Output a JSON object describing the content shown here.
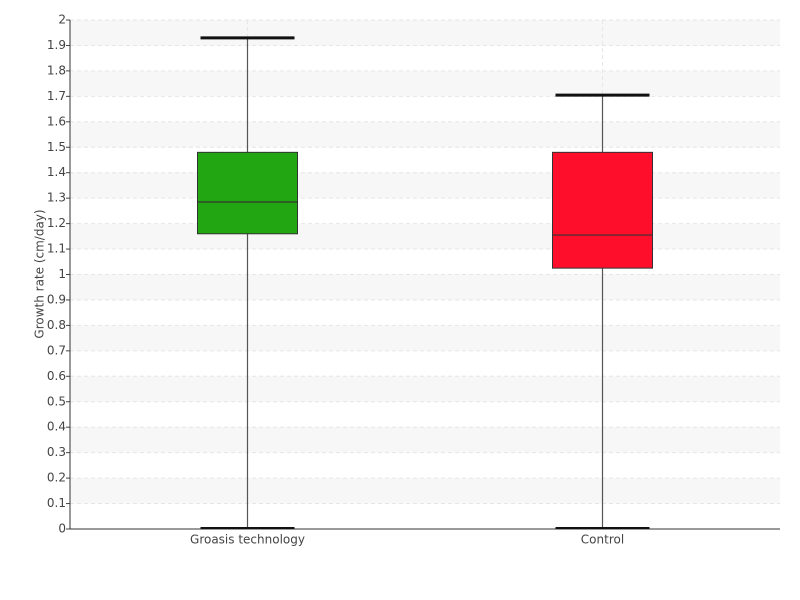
{
  "chart_data": {
    "type": "box",
    "y_label": "Growth rate (cm/day)",
    "categories": [
      "Groasis technology",
      "Control"
    ],
    "boxes": [
      {
        "min": 0,
        "q1": 1.16,
        "median": 1.285,
        "q3": 1.48,
        "max": 1.93,
        "color": "#22a612"
      },
      {
        "min": 0,
        "q1": 1.025,
        "median": 1.155,
        "q3": 1.48,
        "max": 1.705,
        "color": "#ff0e2b"
      }
    ],
    "ylim": [
      0,
      2
    ],
    "yticks": [
      0,
      0.1,
      0.2,
      0.3,
      0.4,
      0.5,
      0.6,
      0.7,
      0.8,
      0.9,
      1,
      1.1,
      1.2,
      1.3,
      1.4,
      1.5,
      1.6,
      1.7,
      1.8,
      1.9,
      2
    ],
    "grid": true
  }
}
